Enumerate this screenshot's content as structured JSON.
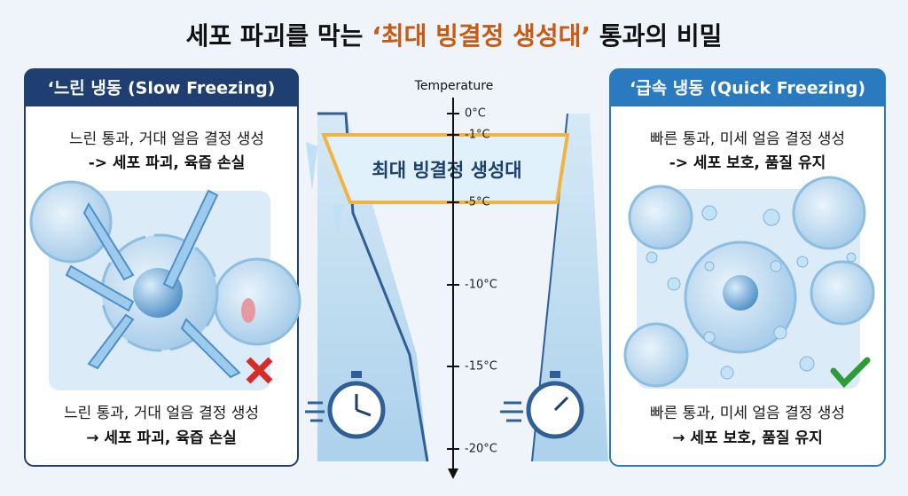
{
  "title": {
    "prefix": "세포 파괴를 막는",
    "highlight": "‘최대 빙결정 생성대’",
    "suffix": "통과의 비밀"
  },
  "slow": {
    "header": "‘느린 냉동 (Slow Freezing)",
    "top_lines": [
      "느린 통과, 거대 얼음 결정 생성",
      "-> 세포 파괴, 육즙 손실"
    ],
    "bottom_lines": [
      "느린 통과, 거대 얼음 결정 생성",
      "→ 세포 파괴, 육즙 손실"
    ]
  },
  "quick": {
    "header": "‘급속 냉동 (Quick Freezing)",
    "top_lines": [
      "빠른 통과, 미세 얼음 결정 생성",
      "-> 세포 보호, 품질 유지"
    ],
    "bottom_lines": [
      "빠른 통과, 미세 얼음 결정 생성",
      "→ 세포 보호, 품질 유지"
    ]
  },
  "axis": {
    "label": "Temperature",
    "ticks": [
      "0°C",
      "-1°C",
      "-5°C",
      "-10°C",
      "-15°C",
      "-20°C"
    ]
  },
  "zone": {
    "label": "최대 빙결정 생성대"
  }
}
